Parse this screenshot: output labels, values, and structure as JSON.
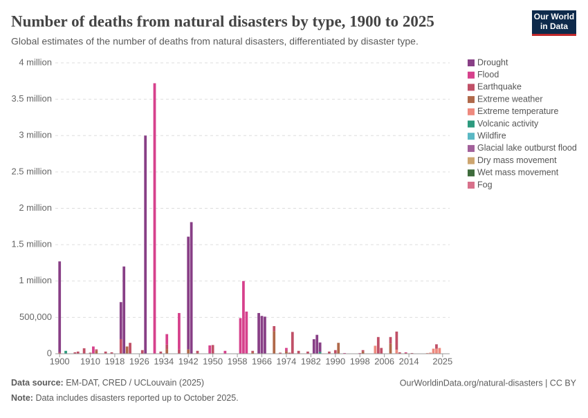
{
  "chart_data": {
    "type": "stacked-bar",
    "title": "Number of deaths from natural disasters by type, 1900 to 2025",
    "subtitle": "Global estimates of the number of deaths from natural disasters, differentiated by disaster type.",
    "logo_lines": [
      "Our World",
      "in Data"
    ],
    "source_label": "Data source:",
    "source": "EM-DAT, CRED / UCLouvain (2025)",
    "url": "OurWorldinData.org/natural-disasters | CC BY",
    "note_label": "Note:",
    "note": "Data includes disasters reported up to October 2025.",
    "x": [
      1900,
      1902,
      1905,
      1906,
      1908,
      1910,
      1911,
      1912,
      1915,
      1917,
      1920,
      1921,
      1922,
      1923,
      1927,
      1928,
      1931,
      1933,
      1935,
      1939,
      1942,
      1943,
      1945,
      1949,
      1950,
      1954,
      1959,
      1960,
      1961,
      1963,
      1965,
      1966,
      1967,
      1970,
      1972,
      1974,
      1975,
      1976,
      1978,
      1981,
      1983,
      1984,
      1985,
      1988,
      1990,
      1991,
      1993,
      1998,
      1999,
      2003,
      2004,
      2005,
      2008,
      2010,
      2011,
      2013,
      2015,
      2020,
      2021,
      2022,
      2023,
      2024
    ],
    "xlim": [
      1898.6,
      2027.3
    ],
    "xticks": [
      1900,
      1910,
      1918,
      1926,
      1934,
      1942,
      1950,
      1958,
      1966,
      1974,
      1982,
      1990,
      1998,
      2006,
      2014,
      2025
    ],
    "ylim": [
      0,
      4000000
    ],
    "yticks": [
      0,
      {
        "value": 500000,
        "label": "500,000"
      },
      {
        "value": 1000000,
        "label": "1 million"
      },
      {
        "value": 1500000,
        "label": "1.5 million"
      },
      {
        "value": 2000000,
        "label": "2 million"
      },
      {
        "value": 2500000,
        "label": "2.5 million"
      },
      {
        "value": 3000000,
        "label": "3 million"
      },
      {
        "value": 3500000,
        "label": "3.5 million"
      },
      {
        "value": 4000000,
        "label": "4 million"
      }
    ],
    "grid": true,
    "legend": "right",
    "series": [
      {
        "name": "Drought",
        "color": "#883f86",
        "values": [
          1250000,
          0,
          0,
          0,
          0,
          0,
          0,
          0,
          0,
          0,
          510000,
          1200000,
          0,
          0,
          0,
          3000000,
          0,
          0,
          0,
          0,
          1550000,
          1810000,
          0,
          0,
          0,
          0,
          0,
          0,
          0,
          0,
          560000,
          520000,
          510000,
          0,
          0,
          0,
          0,
          0,
          0,
          0,
          200000,
          260000,
          130000,
          0,
          0,
          0,
          0,
          0,
          0,
          0,
          0,
          0,
          0,
          0,
          0,
          0,
          0,
          0,
          0,
          0,
          0,
          0
        ]
      },
      {
        "name": "Flood",
        "color": "#d6418c",
        "values": [
          0,
          0,
          0,
          0,
          0,
          0,
          100000,
          0,
          0,
          0,
          0,
          0,
          0,
          0,
          0,
          0,
          3720000,
          0,
          145000,
          500000,
          0,
          0,
          0,
          115000,
          0,
          40000,
          490000,
          1000000,
          580000,
          0,
          0,
          0,
          0,
          0,
          0,
          30000,
          0,
          0,
          0,
          0,
          0,
          0,
          0,
          0,
          0,
          0,
          10000,
          10000,
          0,
          0,
          0,
          0,
          0,
          0,
          0,
          10000,
          0,
          0,
          0,
          0,
          0,
          0
        ]
      },
      {
        "name": "Earthquake",
        "color": "#c05067",
        "values": [
          20000,
          0,
          20000,
          30000,
          75000,
          15000,
          0,
          20000,
          30000,
          20000,
          200000,
          0,
          0,
          150000,
          50000,
          0,
          0,
          30000,
          60000,
          60000,
          0,
          0,
          30000,
          0,
          120000,
          0,
          0,
          0,
          0,
          20000,
          0,
          0,
          0,
          70000,
          15000,
          20000,
          15000,
          300000,
          40000,
          30000,
          0,
          0,
          0,
          30000,
          50000,
          0,
          0,
          0,
          20000,
          0,
          230000,
          80000,
          90000,
          250000,
          20000,
          0,
          10000,
          0,
          0,
          0,
          60000,
          0
        ]
      },
      {
        "name": "Extreme weather",
        "color": "#b0694a",
        "values": [
          0,
          0,
          0,
          0,
          0,
          0,
          0,
          40000,
          0,
          0,
          0,
          0,
          100000,
          0,
          0,
          0,
          0,
          0,
          65000,
          0,
          60000,
          0,
          10000,
          0,
          0,
          0,
          0,
          0,
          0,
          20000,
          0,
          0,
          0,
          310000,
          0,
          30000,
          0,
          0,
          0,
          0,
          0,
          0,
          0,
          0,
          0,
          150000,
          0,
          0,
          30000,
          0,
          0,
          0,
          140000,
          0,
          0,
          10000,
          0,
          0,
          0,
          0,
          0,
          0
        ]
      },
      {
        "name": "Extreme temperature",
        "color": "#ee8a7e",
        "values": [
          0,
          0,
          0,
          0,
          0,
          0,
          0,
          0,
          0,
          0,
          0,
          0,
          0,
          0,
          0,
          0,
          0,
          0,
          0,
          0,
          0,
          0,
          0,
          0,
          0,
          0,
          0,
          0,
          0,
          0,
          0,
          0,
          0,
          0,
          0,
          0,
          0,
          0,
          0,
          0,
          0,
          0,
          0,
          0,
          0,
          0,
          0,
          0,
          0,
          110000,
          0,
          0,
          0,
          55000,
          0,
          0,
          0,
          10000,
          15000,
          70000,
          70000,
          80000
        ]
      },
      {
        "name": "Volcanic activity",
        "color": "#2c9a7e",
        "values": [
          0,
          40000,
          0,
          0,
          0,
          0,
          0,
          0,
          0,
          0,
          0,
          0,
          0,
          0,
          0,
          0,
          0,
          0,
          0,
          0,
          0,
          0,
          0,
          0,
          0,
          0,
          0,
          0,
          0,
          0,
          0,
          0,
          0,
          0,
          0,
          0,
          0,
          0,
          0,
          0,
          0,
          0,
          25000,
          0,
          0,
          0,
          0,
          0,
          0,
          0,
          0,
          0,
          0,
          0,
          0,
          0,
          0,
          0,
          0,
          0,
          0,
          0
        ]
      },
      {
        "name": "Wildfire",
        "color": "#5ab8c4",
        "values": [
          0,
          0,
          0,
          0,
          0,
          0,
          0,
          0,
          0,
          0,
          0,
          0,
          0,
          0,
          0,
          0,
          0,
          0,
          0,
          0,
          0,
          0,
          0,
          0,
          0,
          0,
          0,
          0,
          0,
          0,
          0,
          0,
          0,
          0,
          0,
          0,
          0,
          0,
          0,
          0,
          0,
          0,
          0,
          0,
          0,
          0,
          0,
          0,
          0,
          0,
          0,
          0,
          0,
          0,
          0,
          0,
          0,
          0,
          0,
          0,
          0,
          0
        ]
      },
      {
        "name": "Glacial lake outburst flood",
        "color": "#a2609a",
        "values": [
          0,
          0,
          0,
          0,
          0,
          0,
          0,
          0,
          0,
          0,
          0,
          0,
          0,
          0,
          0,
          0,
          0,
          0,
          0,
          0,
          0,
          0,
          0,
          0,
          0,
          0,
          0,
          0,
          0,
          0,
          0,
          0,
          0,
          0,
          0,
          0,
          0,
          0,
          0,
          0,
          0,
          0,
          0,
          0,
          0,
          0,
          0,
          0,
          0,
          0,
          0,
          0,
          0,
          0,
          0,
          0,
          0,
          0,
          0,
          0,
          0,
          0
        ]
      },
      {
        "name": "Dry mass movement",
        "color": "#cda56f",
        "values": [
          0,
          0,
          0,
          0,
          0,
          0,
          0,
          0,
          0,
          0,
          0,
          0,
          0,
          0,
          0,
          0,
          0,
          0,
          0,
          0,
          0,
          0,
          0,
          0,
          0,
          0,
          0,
          0,
          0,
          0,
          0,
          0,
          0,
          0,
          0,
          0,
          0,
          0,
          0,
          0,
          0,
          0,
          0,
          0,
          0,
          0,
          0,
          0,
          0,
          0,
          0,
          0,
          0,
          0,
          0,
          0,
          0,
          0,
          0,
          0,
          0,
          0
        ]
      },
      {
        "name": "Wet mass movement",
        "color": "#3e6b3b",
        "values": [
          0,
          0,
          0,
          0,
          0,
          0,
          0,
          0,
          0,
          0,
          0,
          0,
          0,
          0,
          0,
          0,
          0,
          0,
          0,
          0,
          0,
          0,
          0,
          0,
          0,
          0,
          0,
          0,
          0,
          0,
          0,
          0,
          0,
          0,
          0,
          0,
          0,
          0,
          0,
          0,
          0,
          0,
          0,
          0,
          0,
          0,
          0,
          0,
          0,
          0,
          0,
          0,
          0,
          0,
          0,
          0,
          0,
          0,
          0,
          0,
          0,
          0
        ]
      },
      {
        "name": "Fog",
        "color": "#d8718b",
        "values": [
          0,
          0,
          0,
          0,
          0,
          0,
          0,
          0,
          0,
          0,
          0,
          0,
          0,
          0,
          0,
          0,
          0,
          0,
          0,
          0,
          0,
          0,
          0,
          0,
          0,
          0,
          0,
          0,
          0,
          0,
          0,
          0,
          0,
          0,
          0,
          0,
          0,
          0,
          0,
          0,
          0,
          0,
          0,
          0,
          0,
          0,
          0,
          0,
          0,
          0,
          0,
          0,
          0,
          0,
          0,
          0,
          0,
          0,
          0,
          0,
          0,
          0
        ]
      }
    ]
  }
}
